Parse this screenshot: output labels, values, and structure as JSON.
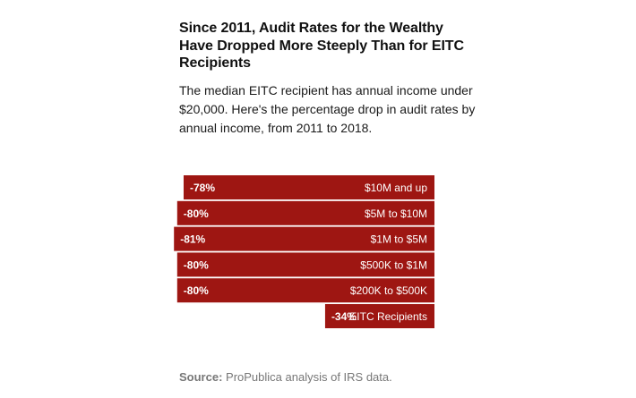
{
  "header": {
    "title": "Since 2011, Audit Rates for the Wealthy Have Dropped More Steeply Than for EITC Recipients",
    "subtitle": "The median EITC recipient has annual income under $20,000. Here's the percentage drop in audit rates by annual income, from 2011 to 2018."
  },
  "footer": {
    "source_label": "Source:",
    "source_text": "ProPublica analysis of IRS data."
  },
  "colors": {
    "bar": "#9e1612",
    "bar_label": "#ffffff"
  },
  "chart_data": {
    "type": "bar",
    "orientation": "horizontal",
    "title": "Since 2011, Audit Rates for the Wealthy Have Dropped More Steeply Than for EITC Recipients",
    "xlabel": "",
    "ylabel": "",
    "xlim": [
      -100,
      0
    ],
    "categories": [
      "$10M and up",
      "$5M to $10M",
      "$1M to $5M",
      "$500K to $1M",
      "$200K to $500K",
      "EITC Recipients"
    ],
    "values": [
      -78,
      -80,
      -81,
      -80,
      -80,
      -34
    ],
    "value_labels": [
      "-78%",
      "-80%",
      "-81%",
      "-80%",
      "-80%",
      "-34%"
    ]
  }
}
